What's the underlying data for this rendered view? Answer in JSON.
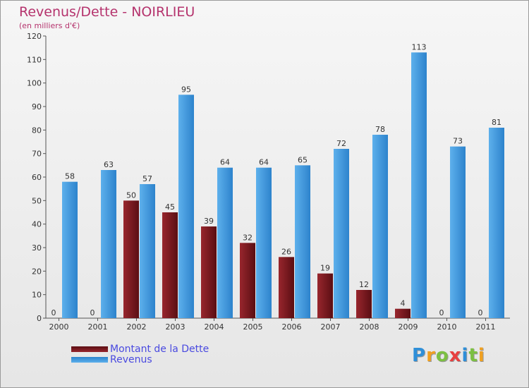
{
  "colors": {
    "title": "#b5336d",
    "legend_text": "#4a4ae0",
    "dette_light": "#98262d",
    "dette_dark": "#5a0e13",
    "revenus_light": "#5db0ec",
    "revenus_dark": "#2d83cc"
  },
  "chart_data": {
    "type": "bar",
    "title": "Revenus/Dette - NOIRLIEU",
    "subtitle": "(en milliers d'€)",
    "categories": [
      "2000",
      "2001",
      "2002",
      "2003",
      "2004",
      "2005",
      "2006",
      "2007",
      "2008",
      "2009",
      "2010",
      "2011"
    ],
    "series": [
      {
        "name": "Montant de la Dette",
        "values": [
          0,
          0,
          50,
          45,
          39,
          32,
          26,
          19,
          12,
          4,
          0,
          0
        ]
      },
      {
        "name": "Revenus",
        "values": [
          58,
          63,
          57,
          95,
          64,
          64,
          65,
          72,
          78,
          113,
          73,
          81
        ]
      }
    ],
    "yticks": [
      "0",
      "10",
      "20",
      "30",
      "40",
      "50",
      "60",
      "70",
      "80",
      "90",
      "100",
      "110",
      "120"
    ],
    "ylim": [
      0,
      120
    ],
    "grid": false,
    "legend_position": "bottom-left"
  },
  "brand": {
    "letters": [
      {
        "char": "P",
        "color": "#2f8fd8"
      },
      {
        "char": "r",
        "color": "#f0a020"
      },
      {
        "char": "o",
        "color": "#7cc042"
      },
      {
        "char": "x",
        "color": "#e84040"
      },
      {
        "char": "i",
        "color": "#2f8fd8"
      },
      {
        "char": "t",
        "color": "#7cc042"
      },
      {
        "char": "i",
        "color": "#f0a020"
      }
    ]
  }
}
